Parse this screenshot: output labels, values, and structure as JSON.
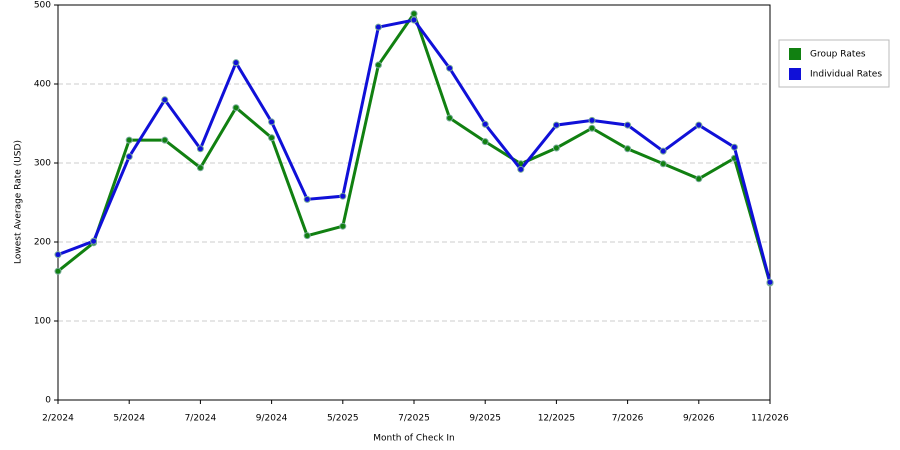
{
  "chart_data": {
    "type": "line",
    "x_label": "Month of Check In",
    "y_label": "Lowest Average Rate (USD)",
    "categories": [
      "2/2024",
      null,
      "5/2024",
      null,
      "7/2024",
      null,
      "9/2024",
      null,
      "5/2025",
      null,
      "7/2025",
      null,
      "9/2025",
      null,
      "12/2025",
      null,
      "7/2026",
      null,
      "9/2026",
      null,
      "11/2026"
    ],
    "series": [
      {
        "name": "Group Rates",
        "color": "#118011",
        "values": [
          163,
          199,
          329,
          329,
          294,
          370,
          332,
          208,
          220,
          424,
          489,
          357,
          327,
          299,
          319,
          344,
          318,
          299,
          280,
          306,
          148
        ]
      },
      {
        "name": "Individual Rates",
        "color": "#1010d8",
        "values": [
          184,
          201,
          308,
          380,
          318,
          427,
          352,
          254,
          258,
          472,
          481,
          420,
          349,
          292,
          348,
          354,
          348,
          315,
          348,
          320,
          149
        ]
      }
    ],
    "ylim": [
      0,
      500
    ],
    "yticks": [
      0,
      100,
      200,
      300,
      400,
      500
    ],
    "grid": true,
    "legend": "right"
  }
}
